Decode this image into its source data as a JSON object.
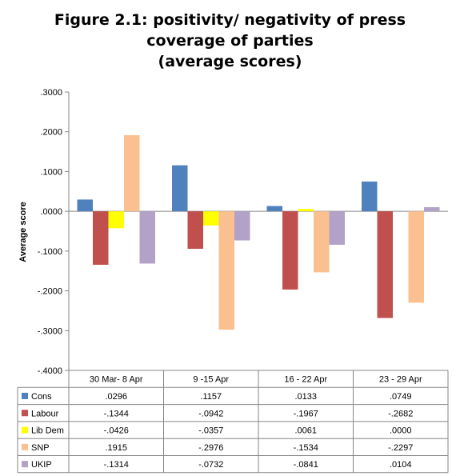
{
  "chart_data": {
    "type": "bar",
    "title_lines": [
      "Figure 2.1: positivity/ negativity of press",
      "coverage of parties",
      "(average scores)"
    ],
    "ylabel": "Average score",
    "ylim": [
      -0.4,
      0.3
    ],
    "yticks": [
      ".3000",
      ".2000",
      ".1000",
      ".0000",
      "-.1000",
      "-.2000",
      "-.3000",
      "-.4000"
    ],
    "ytick_values": [
      0.3,
      0.2,
      0.1,
      0.0,
      -0.1,
      -0.2,
      -0.3,
      -0.4
    ],
    "categories": [
      "30 Mar- 8 Apr",
      "9 -15 Apr",
      "16 - 22 Apr",
      "23 - 29 Apr"
    ],
    "grid": false,
    "legend": "data-table",
    "series": [
      {
        "name": "Cons",
        "color": "#4f81bd",
        "values": [
          0.0296,
          0.1157,
          0.0133,
          0.0749
        ],
        "labels": [
          ".0296",
          ".1157",
          ".0133",
          ".0749"
        ]
      },
      {
        "name": "Labour",
        "color": "#c0504d",
        "values": [
          -0.1344,
          -0.0942,
          -0.1967,
          -0.2682
        ],
        "labels": [
          "-.1344",
          "-.0942",
          "-.1967",
          "-.2682"
        ]
      },
      {
        "name": "Lib Dem",
        "color": "#ffff00",
        "values": [
          -0.0426,
          -0.0357,
          0.0061,
          0.0
        ],
        "labels": [
          "-.0426",
          "-.0357",
          ".0061",
          ".0000"
        ]
      },
      {
        "name": "SNP",
        "color": "#fac090",
        "values": [
          0.1915,
          -0.2976,
          -0.1534,
          -0.2297
        ],
        "labels": [
          ".1915",
          "-.2976",
          "-.1534",
          "-.2297"
        ]
      },
      {
        "name": "UKIP",
        "color": "#b3a2c7",
        "values": [
          -0.1314,
          -0.0732,
          -0.0841,
          0.0104
        ],
        "labels": [
          "-.1314",
          "-.0732",
          "-.0841",
          ".0104"
        ]
      }
    ]
  }
}
